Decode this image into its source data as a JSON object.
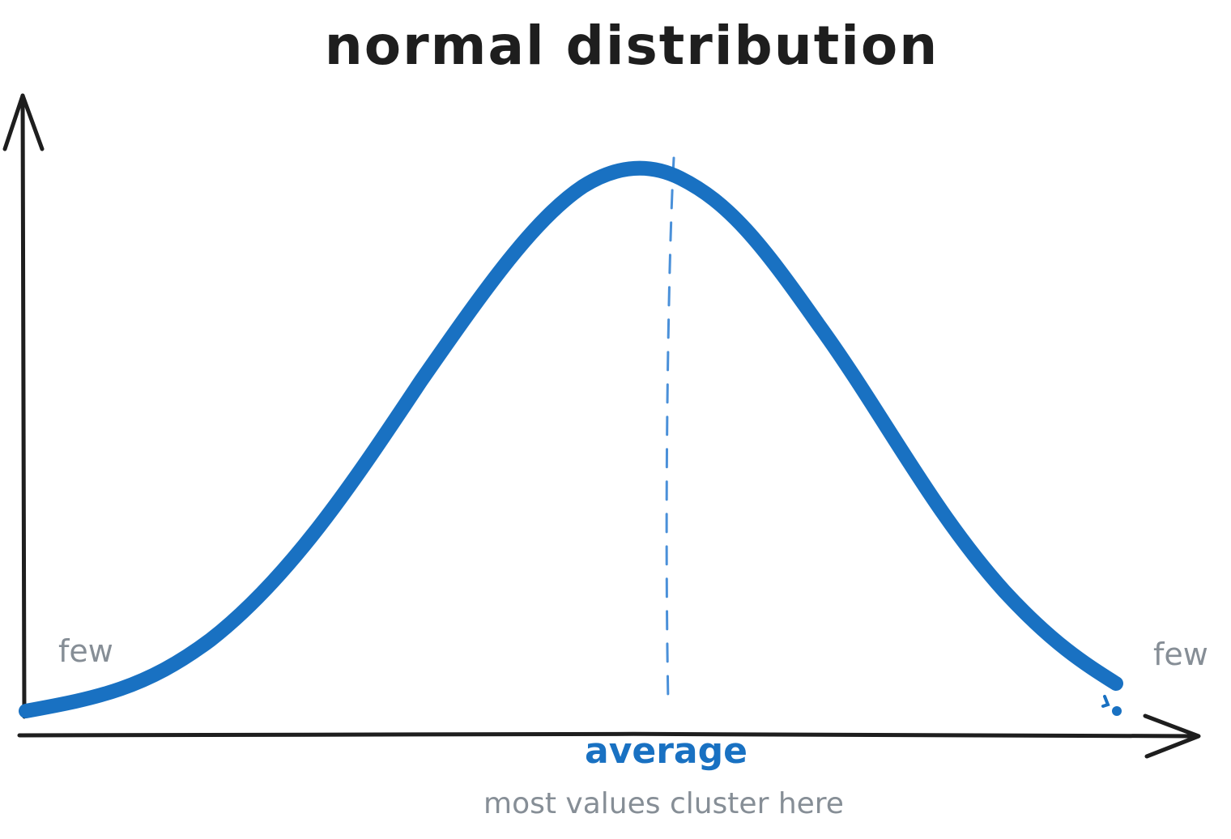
{
  "title": "normal distribution",
  "labels": {
    "left_tail": "few",
    "right_tail": "few",
    "center": "average",
    "center_note": "most values cluster here"
  },
  "colors": {
    "ink": "#1e1e1e",
    "curve": "#1971c2",
    "mean_line": "#4a90d9",
    "muted_text": "#868e96"
  }
}
